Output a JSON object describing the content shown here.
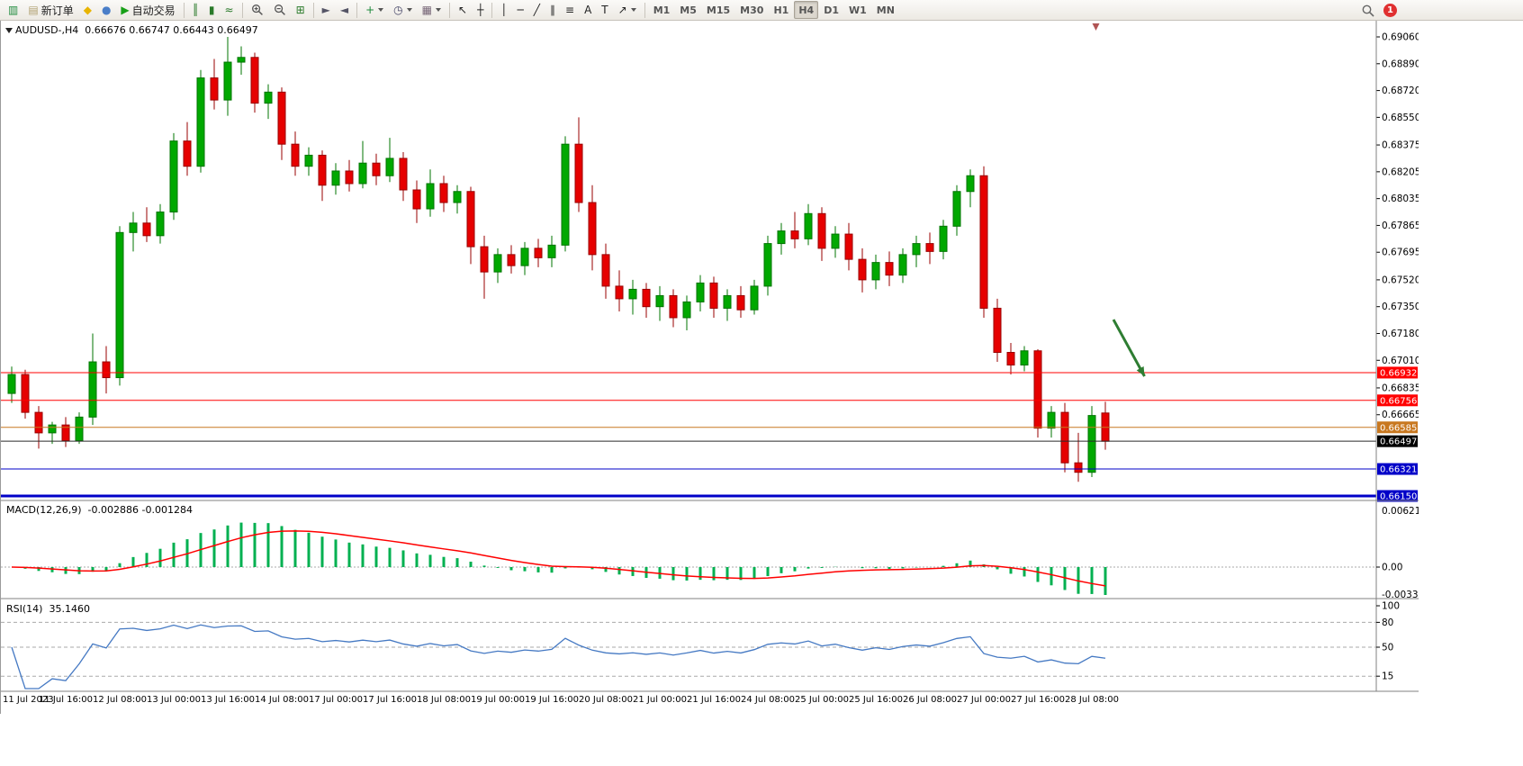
{
  "toolbar": {
    "notification_count": "1",
    "items": [
      {
        "name": "new-chart-button",
        "glyph": "▥",
        "color": "#1e8a3c"
      },
      {
        "name": "new-order-button",
        "glyph": "▤",
        "color": "#b0a070",
        "label": "新订单"
      },
      {
        "name": "metaeditor-button",
        "glyph": "◆",
        "color": "#e8b400"
      },
      {
        "name": "market-button",
        "glyph": "●",
        "color": "#4a7ec8"
      },
      {
        "name": "auto-trading-button",
        "glyph": "▶",
        "color": "#18a018",
        "label": "自动交易"
      },
      {
        "divider": true
      },
      {
        "name": "bar-chart-mode-button",
        "glyph": "║",
        "color": "#2a7a2a"
      },
      {
        "name": "candlestick-mode-button",
        "glyph": "▮",
        "color": "#2a7a2a"
      },
      {
        "name": "line-chart-mode-button",
        "glyph": "≈",
        "color": "#2a7a2a"
      },
      {
        "divider": true
      },
      {
        "name": "zoom-in-button",
        "icon": "magnifier-plus"
      },
      {
        "name": "zoom-out-button",
        "icon": "magnifier-minus"
      },
      {
        "name": "tile-windows-button",
        "glyph": "⊞",
        "color": "#2a7a2a"
      },
      {
        "divider": true
      },
      {
        "name": "auto-scroll-button",
        "glyph": "►",
        "color": "#556"
      },
      {
        "name": "chart-shift-button",
        "glyph": "◄",
        "color": "#556"
      },
      {
        "divider": true
      },
      {
        "name": "indicators-button",
        "glyph": "+",
        "color": "#1e8a3c",
        "caret": true
      },
      {
        "name": "periods-button",
        "glyph": "◷",
        "color": "#446",
        "caret": true
      },
      {
        "name": "templates-button",
        "glyph": "▦",
        "color": "#767",
        "caret": true
      },
      {
        "divider": true
      },
      {
        "name": "cursor-button",
        "glyph": "↖",
        "color": "#222"
      },
      {
        "name": "crosshair-button",
        "glyph": "┼",
        "color": "#222"
      },
      {
        "divider": true
      },
      {
        "name": "vertical-line-button",
        "glyph": "│",
        "color": "#222"
      },
      {
        "name": "horizontal-line-button",
        "glyph": "─",
        "color": "#222"
      },
      {
        "name": "trendline-button",
        "glyph": "╱",
        "color": "#222"
      },
      {
        "name": "equidistant-channel-button",
        "glyph": "∥",
        "color": "#222"
      },
      {
        "name": "fibonacci-button",
        "glyph": "≡",
        "color": "#222"
      },
      {
        "name": "text-button",
        "glyph": "A",
        "color": "#222"
      },
      {
        "name": "text-label-button",
        "glyph": "T",
        "color": "#222"
      },
      {
        "name": "arrows-button",
        "glyph": "↗",
        "color": "#222",
        "caret": true
      },
      {
        "divider": true
      },
      {
        "name": "timeframe-m1-button",
        "label": "M1",
        "tf": true
      },
      {
        "name": "timeframe-m5-button",
        "label": "M5",
        "tf": true
      },
      {
        "name": "timeframe-m15-button",
        "label": "M15",
        "tf": true
      },
      {
        "name": "timeframe-m30-button",
        "label": "M30",
        "tf": true
      },
      {
        "name": "timeframe-h1-button",
        "label": "H1",
        "tf": true
      },
      {
        "name": "timeframe-h4-button",
        "label": "H4",
        "tf": true,
        "active": true
      },
      {
        "name": "timeframe-d1-button",
        "label": "D1",
        "tf": true
      },
      {
        "name": "timeframe-w1-button",
        "label": "W1",
        "tf": true
      },
      {
        "name": "timeframe-mn-button",
        "label": "MN",
        "tf": true
      }
    ]
  },
  "chart": {
    "title": "AUDUSD-,H4",
    "ohlc_text": "0.66676 0.66747 0.66443 0.66497"
  },
  "chart_data": {
    "type": "candlestick",
    "symbol": "AUDUSD-",
    "timeframe": "H4",
    "current": {
      "open": 0.66676,
      "high": 0.66747,
      "low": 0.66443,
      "close": 0.66497
    },
    "label_every": 4,
    "x_labels": [
      "11 Jul 2023",
      "11 Jul 16:00",
      "12 Jul 08:00",
      "13 Jul 00:00",
      "13 Jul 16:00",
      "14 Jul 08:00",
      "17 Jul 00:00",
      "17 Jul 16:00",
      "18 Jul 08:00",
      "19 Jul 00:00",
      "19 Jul 16:00",
      "20 Jul 08:00",
      "21 Jul 00:00",
      "21 Jul 16:00",
      "24 Jul 08:00",
      "25 Jul 00:00",
      "25 Jul 16:00",
      "26 Jul 08:00",
      "27 Jul 00:00",
      "27 Jul 16:00",
      "28 Jul 08:00"
    ],
    "y_axis": [
      "0.69060",
      "0.68890",
      "0.68720",
      "0.68550",
      "0.68375",
      "0.68205",
      "0.68035",
      "0.67865",
      "0.67695",
      "0.67520",
      "0.67350",
      "0.67180",
      "0.67010",
      "0.66835",
      "0.66665"
    ],
    "candles": [
      [
        0.668,
        0.6697,
        0.6674,
        0.6692
      ],
      [
        0.6692,
        0.6695,
        0.6664,
        0.6668
      ],
      [
        0.6668,
        0.6672,
        0.6645,
        0.6655
      ],
      [
        0.6655,
        0.6662,
        0.6648,
        0.666
      ],
      [
        0.666,
        0.6665,
        0.6646,
        0.665
      ],
      [
        0.665,
        0.6668,
        0.6648,
        0.6665
      ],
      [
        0.6665,
        0.6718,
        0.666,
        0.67
      ],
      [
        0.67,
        0.671,
        0.668,
        0.669
      ],
      [
        0.669,
        0.6786,
        0.6685,
        0.6782
      ],
      [
        0.6782,
        0.6795,
        0.677,
        0.6788
      ],
      [
        0.6788,
        0.6798,
        0.6776,
        0.678
      ],
      [
        0.678,
        0.68,
        0.6775,
        0.6795
      ],
      [
        0.6795,
        0.6845,
        0.679,
        0.684
      ],
      [
        0.684,
        0.6852,
        0.6818,
        0.6824
      ],
      [
        0.6824,
        0.6885,
        0.682,
        0.688
      ],
      [
        0.688,
        0.6892,
        0.686,
        0.6866
      ],
      [
        0.6866,
        0.6906,
        0.6856,
        0.689
      ],
      [
        0.689,
        0.69,
        0.6882,
        0.6893
      ],
      [
        0.6893,
        0.6896,
        0.6858,
        0.6864
      ],
      [
        0.6864,
        0.6876,
        0.6854,
        0.6871
      ],
      [
        0.6871,
        0.6874,
        0.6828,
        0.6838
      ],
      [
        0.6838,
        0.6846,
        0.6818,
        0.6824
      ],
      [
        0.6824,
        0.6836,
        0.6818,
        0.6831
      ],
      [
        0.6831,
        0.6834,
        0.6802,
        0.6812
      ],
      [
        0.6812,
        0.6826,
        0.6806,
        0.6821
      ],
      [
        0.6821,
        0.6828,
        0.6808,
        0.6813
      ],
      [
        0.6813,
        0.684,
        0.681,
        0.6826
      ],
      [
        0.6826,
        0.6832,
        0.6812,
        0.6818
      ],
      [
        0.6818,
        0.6842,
        0.6814,
        0.6829
      ],
      [
        0.6829,
        0.6833,
        0.6802,
        0.6809
      ],
      [
        0.6809,
        0.6815,
        0.6788,
        0.6797
      ],
      [
        0.6797,
        0.6822,
        0.6792,
        0.6813
      ],
      [
        0.6813,
        0.6818,
        0.6795,
        0.6801
      ],
      [
        0.6801,
        0.6812,
        0.6794,
        0.6808
      ],
      [
        0.6808,
        0.6811,
        0.6762,
        0.6773
      ],
      [
        0.6773,
        0.678,
        0.674,
        0.6757
      ],
      [
        0.6757,
        0.6772,
        0.675,
        0.6768
      ],
      [
        0.6768,
        0.6774,
        0.6756,
        0.6761
      ],
      [
        0.6761,
        0.6776,
        0.6755,
        0.6772
      ],
      [
        0.6772,
        0.6778,
        0.676,
        0.6766
      ],
      [
        0.6766,
        0.678,
        0.676,
        0.6774
      ],
      [
        0.6774,
        0.6843,
        0.677,
        0.6838
      ],
      [
        0.6838,
        0.6855,
        0.6795,
        0.6801
      ],
      [
        0.6801,
        0.6812,
        0.6758,
        0.6768
      ],
      [
        0.6768,
        0.6775,
        0.674,
        0.6748
      ],
      [
        0.6748,
        0.6758,
        0.6732,
        0.674
      ],
      [
        0.674,
        0.6752,
        0.673,
        0.6746
      ],
      [
        0.6746,
        0.675,
        0.6728,
        0.6735
      ],
      [
        0.6735,
        0.6748,
        0.6726,
        0.6742
      ],
      [
        0.6742,
        0.6746,
        0.6722,
        0.6728
      ],
      [
        0.6728,
        0.6742,
        0.672,
        0.6738
      ],
      [
        0.6738,
        0.6755,
        0.6732,
        0.675
      ],
      [
        0.675,
        0.6754,
        0.6728,
        0.6734
      ],
      [
        0.6734,
        0.6746,
        0.6726,
        0.6742
      ],
      [
        0.6742,
        0.6748,
        0.6728,
        0.6733
      ],
      [
        0.6733,
        0.6752,
        0.673,
        0.6748
      ],
      [
        0.6748,
        0.678,
        0.6742,
        0.6775
      ],
      [
        0.6775,
        0.6788,
        0.6768,
        0.6783
      ],
      [
        0.6783,
        0.6795,
        0.6772,
        0.6778
      ],
      [
        0.6778,
        0.68,
        0.6774,
        0.6794
      ],
      [
        0.6794,
        0.6798,
        0.6764,
        0.6772
      ],
      [
        0.6772,
        0.6786,
        0.6766,
        0.6781
      ],
      [
        0.6781,
        0.6788,
        0.6758,
        0.6765
      ],
      [
        0.6765,
        0.6772,
        0.6744,
        0.6752
      ],
      [
        0.6752,
        0.6768,
        0.6746,
        0.6763
      ],
      [
        0.6763,
        0.677,
        0.6748,
        0.6755
      ],
      [
        0.6755,
        0.6772,
        0.675,
        0.6768
      ],
      [
        0.6768,
        0.678,
        0.676,
        0.6775
      ],
      [
        0.6775,
        0.6782,
        0.6762,
        0.677
      ],
      [
        0.677,
        0.679,
        0.6765,
        0.6786
      ],
      [
        0.6786,
        0.6812,
        0.678,
        0.6808
      ],
      [
        0.6808,
        0.6822,
        0.6798,
        0.6818
      ],
      [
        0.6818,
        0.6824,
        0.6728,
        0.6734
      ],
      [
        0.6734,
        0.674,
        0.67,
        0.6706
      ],
      [
        0.6706,
        0.6712,
        0.6692,
        0.6698
      ],
      [
        0.6698,
        0.671,
        0.6694,
        0.6707
      ],
      [
        0.6707,
        0.6708,
        0.6652,
        0.6658
      ],
      [
        0.6658,
        0.6672,
        0.6652,
        0.6668
      ],
      [
        0.6668,
        0.6674,
        0.663,
        0.6636
      ],
      [
        0.6636,
        0.6655,
        0.6624,
        0.663
      ],
      [
        0.663,
        0.6672,
        0.6627,
        0.6666
      ],
      [
        0.66676,
        0.66747,
        0.66443,
        0.66497
      ]
    ],
    "price_lines": [
      {
        "price": 0.66932,
        "label": "0.66932",
        "color": "#ff0000",
        "width": 1
      },
      {
        "price": 0.66756,
        "label": "0.66756",
        "color": "#ff0000",
        "width": 1
      },
      {
        "price": 0.66585,
        "label": "0.66585",
        "color": "#c87820",
        "width": 1
      },
      {
        "price": 0.66321,
        "label": "0.66321",
        "color": "#0000c8",
        "width": 1
      },
      {
        "price": 0.6615,
        "label": "0.66150",
        "color": "#0000c8",
        "width": 3
      }
    ],
    "current_price": {
      "value": 0.66497,
      "label": "0.66497",
      "line_color": "#2a2a2a",
      "tag_color": "#000000"
    },
    "indicators": {
      "macd": {
        "name": "MACD(12,26,9)",
        "values": "-0.002886 -0.001284",
        "fast": 12,
        "slow": 26,
        "smoothing": 9,
        "axis": {
          "max": "0.006216",
          "zero": "0.00",
          "min": "-0.00332"
        },
        "histogram_color": "#00b050",
        "signal_color": "#ff0000"
      },
      "rsi": {
        "name": "RSI(14)",
        "value": "35.1460",
        "period": 14,
        "levels": [
          80,
          50,
          15
        ],
        "axis": [
          "100",
          "80",
          "50",
          "15"
        ],
        "line_color": "#4579c3"
      }
    },
    "annotation": {
      "type": "arrow",
      "from": {
        "bar": 81.6,
        "price": 0.67268
      },
      "to": {
        "bar": 83.9,
        "price": 0.66909
      },
      "color": "#2e7d32",
      "width": 3
    },
    "shift_marker": {
      "bar": 80.3,
      "color": "#b05555"
    },
    "colors": {
      "up": "#00a800",
      "up_stroke": "#007400",
      "down": "#e60000",
      "down_stroke": "#990000",
      "separator": "#808080",
      "background": "#ffffff"
    }
  }
}
